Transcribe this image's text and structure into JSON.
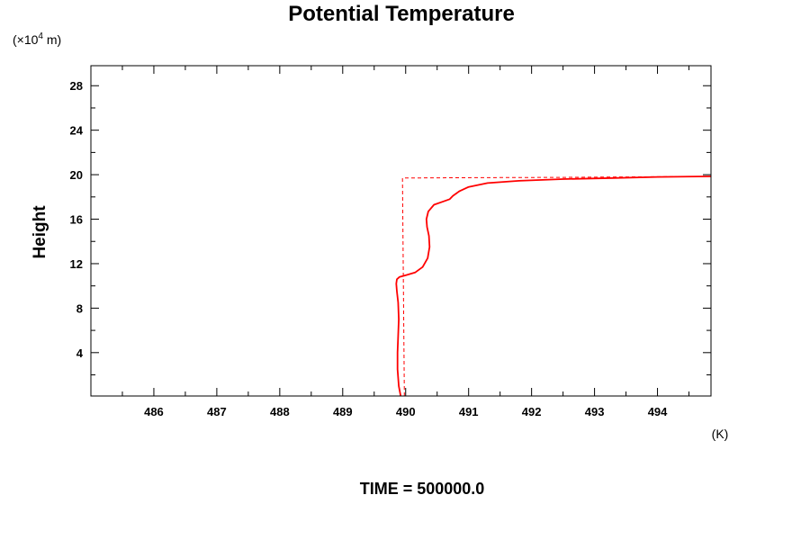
{
  "chart_data": {
    "type": "line",
    "title": "Potential Temperature",
    "xlabel": "(K)",
    "ylabel": "Height",
    "y_unit_prefix": "(×10",
    "y_unit_exp": "4",
    "y_unit_suffix": " m)",
    "footer": "TIME = 500000.0",
    "xlim": [
      485.0,
      494.85
    ],
    "ylim": [
      0.1,
      29.8
    ],
    "x_ticks": [
      486,
      487,
      488,
      489,
      490,
      491,
      492,
      493,
      494
    ],
    "x_tick_labels": [
      "486",
      "487",
      "488",
      "489",
      "490",
      "491",
      "492",
      "493",
      "494"
    ],
    "y_ticks": [
      4,
      8,
      12,
      16,
      20,
      24,
      28
    ],
    "y_tick_labels": [
      "4",
      "8",
      "12",
      "16",
      "20",
      "24",
      "28"
    ],
    "grid": false,
    "series": [
      {
        "style": "solid",
        "color": "#ff0000",
        "x": [
          489.92,
          489.89,
          489.87,
          489.87,
          489.88,
          489.89,
          489.88,
          489.86,
          489.85,
          489.86,
          489.9,
          490.0,
          490.15,
          490.27,
          490.35,
          490.38,
          490.37,
          490.34,
          490.33,
          490.36,
          490.45,
          490.6,
          490.7,
          490.75,
          490.85,
          491.0,
          491.3,
          491.8,
          492.5,
          493.3,
          494.0,
          494.85
        ],
        "y": [
          0.1,
          1.0,
          2.5,
          4.0,
          5.5,
          7.0,
          8.5,
          9.5,
          10.2,
          10.6,
          10.8,
          10.95,
          11.2,
          11.7,
          12.5,
          13.5,
          14.5,
          15.3,
          16.0,
          16.7,
          17.3,
          17.6,
          17.8,
          18.1,
          18.5,
          18.9,
          19.25,
          19.45,
          19.6,
          19.7,
          19.8,
          19.85
        ]
      },
      {
        "style": "dashed",
        "color": "#ff0000",
        "x": [
          489.98,
          489.95,
          489.95,
          490.5,
          491.5,
          492.5,
          493.5,
          494.85
        ],
        "y": [
          0.1,
          19.6,
          19.7,
          19.72,
          19.74,
          19.76,
          19.8,
          19.85
        ]
      }
    ]
  }
}
